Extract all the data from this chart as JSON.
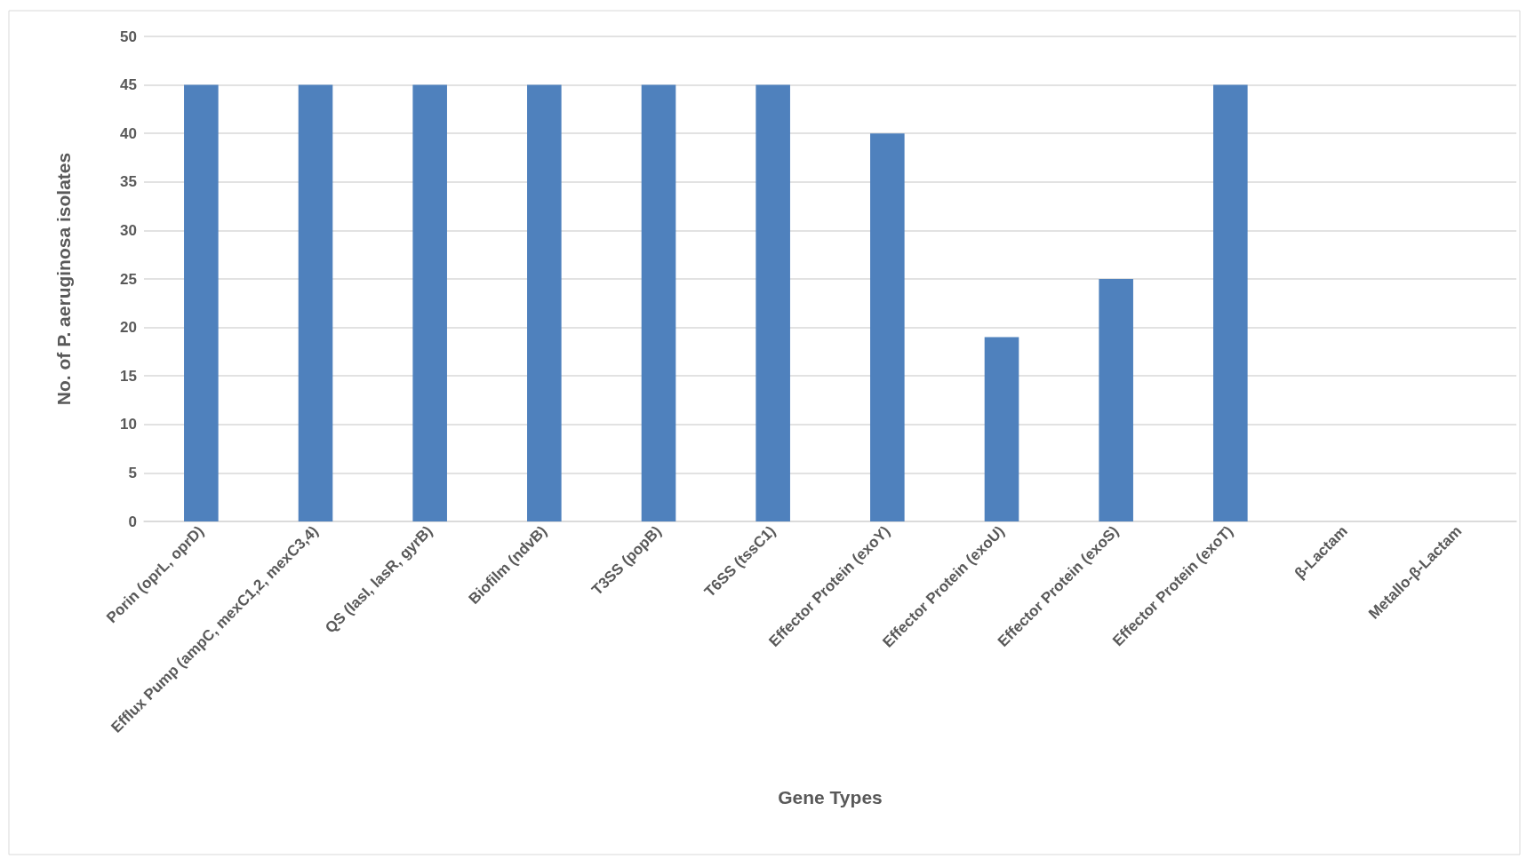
{
  "chart_data": {
    "type": "bar",
    "xlabel": "Gene Types",
    "ylabel": "No. of P. aeruginosa isolates",
    "categories": [
      "Porin (oprL, oprD)",
      "Efflux Pump (ampC, mexC1,2, mexC3,4)",
      "QS (lasI, lasR, gyrB)",
      "Biofilm (ndvB)",
      "T3SS (popB)",
      "T6SS (tssC1)",
      "Effector Protein (exoY)",
      "Effector Protein (exoU)",
      "Effector Protein (exoS)",
      "Effector Protein (exoT)",
      "β-Lactam",
      "Metallo-β-Lactam"
    ],
    "values": [
      45,
      45,
      45,
      45,
      45,
      45,
      40,
      19,
      25,
      45,
      0,
      0
    ],
    "color": "#4f81bd",
    "ylim": [
      0,
      50
    ],
    "yticks": [
      0,
      5,
      10,
      15,
      20,
      25,
      30,
      35,
      40,
      45,
      50
    ],
    "grid": "y"
  }
}
